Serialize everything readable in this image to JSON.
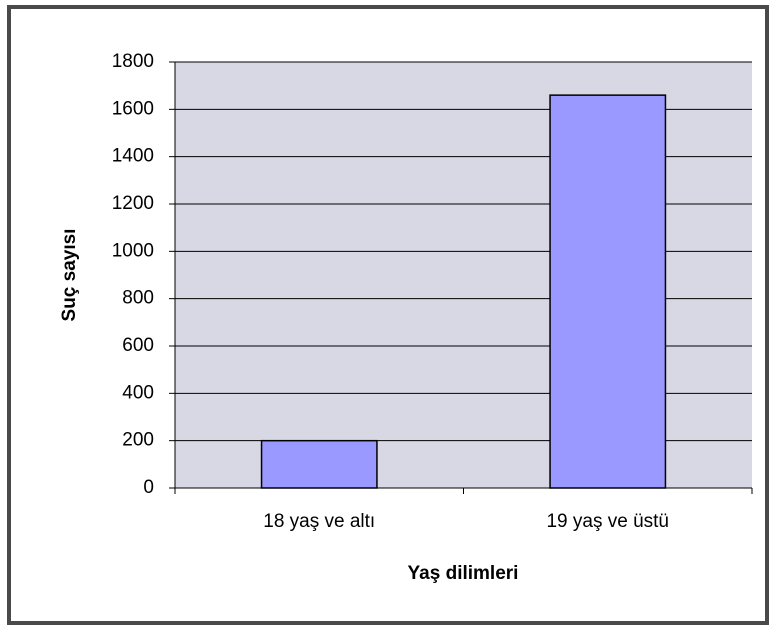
{
  "chart_data": {
    "type": "bar",
    "categories": [
      "18 yaş ve altı",
      "19 yaş ve üstü"
    ],
    "values": [
      200,
      1660
    ],
    "color": "#9999ff",
    "x_label": "Yaş dilimleri",
    "y_label": "Suç sayısı",
    "ylim": [
      0,
      1800
    ],
    "yticks": [
      0,
      200,
      400,
      600,
      800,
      1000,
      1200,
      1400,
      1600,
      1800
    ],
    "grid": true
  }
}
